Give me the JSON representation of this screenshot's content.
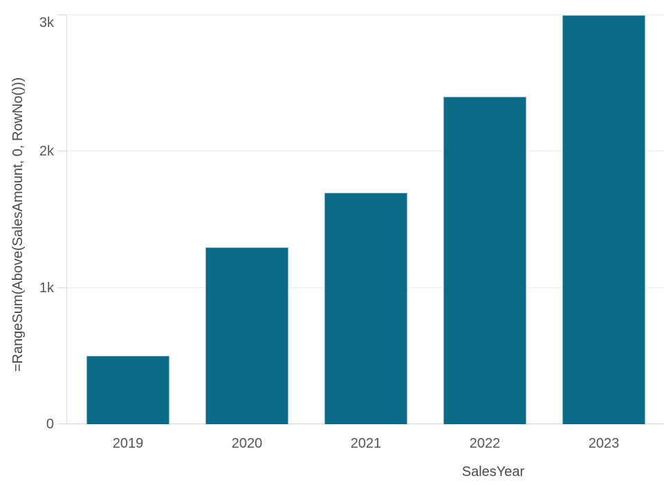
{
  "chart_data": {
    "type": "bar",
    "title": "",
    "categories": [
      "2019",
      "2020",
      "2021",
      "2022",
      "2023"
    ],
    "values": [
      500,
      1300,
      1700,
      2400,
      3000
    ],
    "xlabel": "SalesYear",
    "ylabel": "=RangeSum(Above(SalesAmount, 0, RowNo()))",
    "ylim": [
      0,
      3000
    ],
    "yticks": {
      "values": [
        0,
        1000,
        2000,
        3000
      ],
      "labels": [
        "0",
        "1k",
        "2k",
        "3k"
      ]
    },
    "grid": "horizontal gridlines on",
    "legend": "none"
  },
  "colors": {
    "bar_fill": "#0a6a87",
    "axis_line": "#d9d9d9",
    "gridline": "#ececec",
    "tick_text": "#555555",
    "axis_title_text": "#4a4a4a",
    "background": "#ffffff"
  }
}
